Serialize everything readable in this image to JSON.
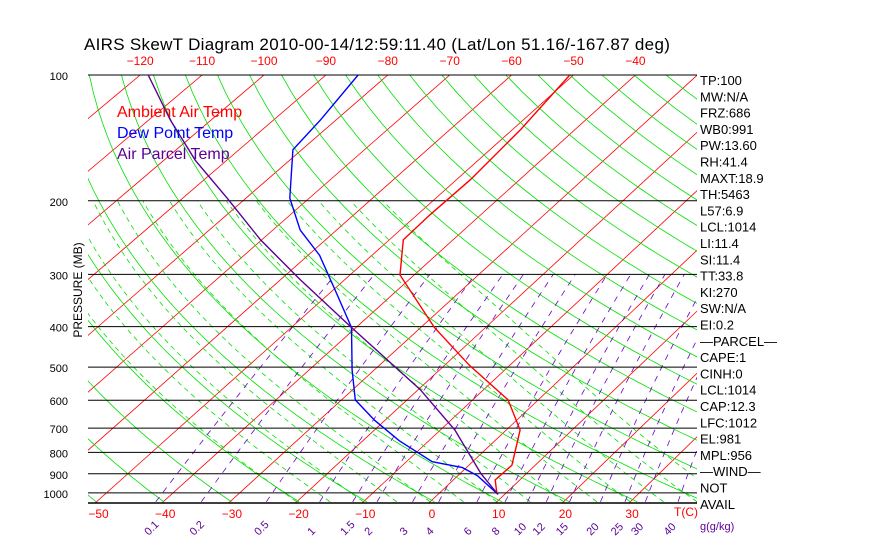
{
  "chart_data": {
    "type": "line",
    "subtype": "skew-T log-P",
    "title": "AIRS SkewT Diagram 2010-00-14/12:59:11.40 (Lat/Lon 51.16/-167.87 deg)",
    "ylabel": "PRESSURE (MB)",
    "xlabel": "T(C)",
    "mixing_ratio_label": "g(g/kg)",
    "pressure_ticks": [
      100,
      200,
      300,
      400,
      500,
      600,
      700,
      800,
      900,
      1000
    ],
    "temp_ticks_bottom": [
      -50,
      -40,
      -30,
      -20,
      -10,
      0,
      10,
      20,
      30
    ],
    "temp_ticks_top": [
      -120,
      -110,
      -100,
      -90,
      -80,
      -70,
      -60,
      -50,
      -40
    ],
    "mixing_ratio_ticks": [
      "0.1",
      "0.2",
      "0.5",
      "1",
      "1.5",
      "2",
      "3",
      "4",
      "6",
      "8",
      "10",
      "12",
      "15",
      "20",
      "25",
      "30",
      "40"
    ],
    "legend": [
      {
        "label": "Ambient Air Temp",
        "color": "#ff0000"
      },
      {
        "label": "Dew Point Temp",
        "color": "#0000ff"
      },
      {
        "label": "Air Parcel Temp",
        "color": "#5a0096"
      }
    ],
    "series": [
      {
        "name": "Ambient Air Temp",
        "color": "#ff0000",
        "points": [
          [
            1000,
            8.6
          ],
          [
            931,
            6.3
          ],
          [
            859,
            6.5
          ],
          [
            707,
            2.1
          ],
          [
            599,
            -4.6
          ],
          [
            495,
            -16.2
          ],
          [
            402,
            -27.9
          ],
          [
            301,
            -42.2
          ],
          [
            248,
            -47.8
          ],
          [
            216,
            -48.0
          ],
          [
            178,
            -47.8
          ],
          [
            135,
            -48.7
          ],
          [
            100,
            -50.6
          ]
        ]
      },
      {
        "name": "Dew Point Temp",
        "color": "#0000ff",
        "points": [
          [
            1008,
            9.0
          ],
          [
            910,
            3.0
          ],
          [
            870,
            -0.6
          ],
          [
            842,
            -6.1
          ],
          [
            750,
            -14.5
          ],
          [
            670,
            -21.6
          ],
          [
            599,
            -27.9
          ],
          [
            508,
            -33.4
          ],
          [
            402,
            -40.7
          ],
          [
            327,
            -49.7
          ],
          [
            270,
            -58.2
          ],
          [
            235,
            -65.7
          ],
          [
            197,
            -73.1
          ],
          [
            151,
            -81.4
          ],
          [
            128,
            -82.5
          ],
          [
            100,
            -84.8
          ]
        ]
      },
      {
        "name": "Air Parcel Temp",
        "color": "#5a0096",
        "points": [
          [
            1008,
            9.0
          ],
          [
            900,
            3.2
          ],
          [
            707,
            -7.8
          ],
          [
            566,
            -19.7
          ],
          [
            402,
            -40.7
          ],
          [
            309,
            -56.9
          ],
          [
            248,
            -70.2
          ],
          [
            197,
            -83.0
          ],
          [
            160,
            -95.0
          ],
          [
            128,
            -106.6
          ],
          [
            100,
            -118.7
          ]
        ]
      }
    ],
    "ylim": [
      1000,
      100
    ],
    "stats": [
      "TP:100",
      "MW:N/A",
      "FRZ:686",
      "WB0:991",
      "PW:13.60",
      "RH:41.4",
      "MAXT:18.9",
      "TH:5463",
      "L57:6.9",
      "LCL:1014",
      "LI:11.4",
      "SI:11.4",
      "TT:33.8",
      "KI:270",
      "SW:N/A",
      "EI:0.2",
      "—PARCEL—",
      "CAPE:1",
      "CINH:0",
      "LCL:1014",
      "CAP:12.3",
      "LFC:1012",
      "EL:981",
      "MPL:956",
      "—WIND—",
      "NOT",
      "AVAIL"
    ]
  }
}
